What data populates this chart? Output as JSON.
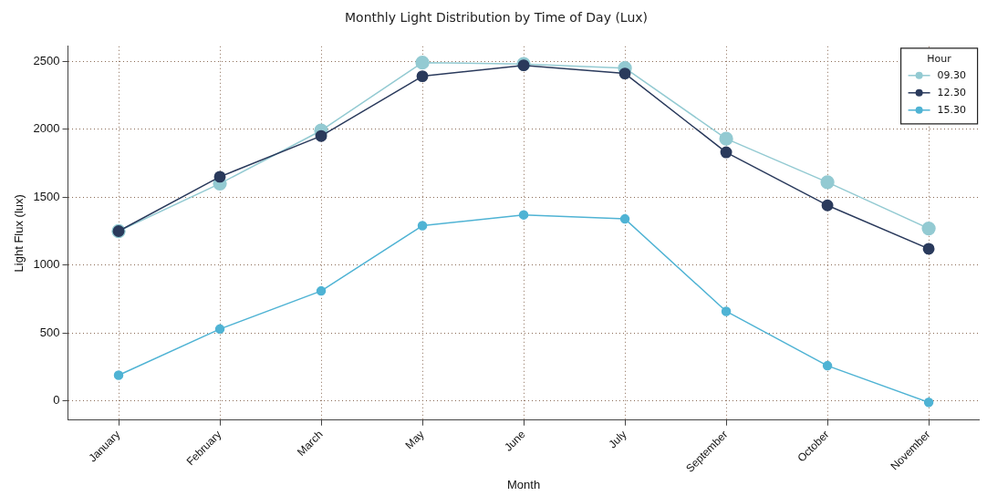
{
  "chart_data": {
    "type": "line",
    "title": "Monthly Light Distribution by Time of Day (Lux)",
    "xlabel": "Month",
    "ylabel": "Light Flux (lux)",
    "legend_title": "Hour",
    "categories": [
      "January",
      "February",
      "March",
      "May",
      "June",
      "July",
      "September",
      "October",
      "November"
    ],
    "series": [
      {
        "name": "09.30",
        "color": "#93cad2",
        "values": [
          1250,
          1600,
          1990,
          2490,
          2480,
          2450,
          1930,
          1610,
          1270
        ]
      },
      {
        "name": "12.30",
        "color": "#2a3a5c",
        "values": [
          1250,
          1650,
          1950,
          2390,
          2470,
          2410,
          1830,
          1440,
          1120
        ]
      },
      {
        "name": "15.30",
        "color": "#4fb3d4",
        "values": [
          190,
          530,
          810,
          1290,
          1370,
          1340,
          660,
          260,
          -10
        ]
      }
    ],
    "ylim": [
      -140,
      2610
    ],
    "yticks": [
      0,
      500,
      1000,
      1500,
      2000,
      2500
    ],
    "grid": true,
    "legend": "top right",
    "marker": "circle",
    "line_style": "solid"
  }
}
